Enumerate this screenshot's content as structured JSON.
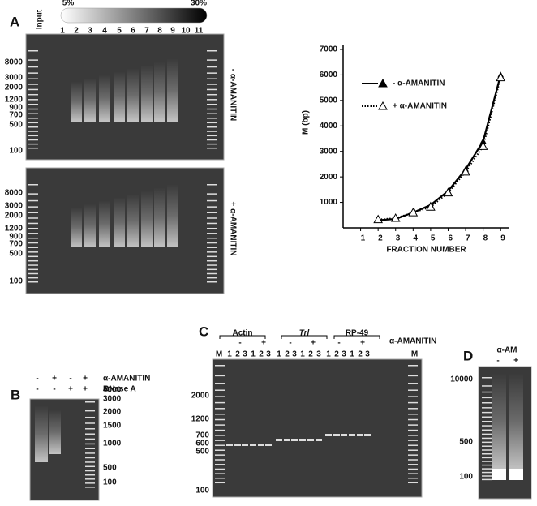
{
  "panel_a": {
    "label": "A",
    "gradient": [
      "5%",
      "30%"
    ],
    "lanes": [
      "input",
      "1",
      "2",
      "3",
      "4",
      "5",
      "6",
      "7",
      "8",
      "9",
      "10",
      "11"
    ],
    "ladder": [
      8000,
      3000,
      2000,
      1200,
      900,
      700,
      500,
      100
    ],
    "gels": [
      {
        "side_label": "- α-AMANITIN"
      },
      {
        "side_label": "+ α-AMANITIN"
      }
    ]
  },
  "chart_data": {
    "type": "line",
    "ylabel": "M (bp)",
    "xlabel": "FRACTION NUMBER",
    "x": [
      2,
      3,
      4,
      5,
      6,
      7,
      8,
      9
    ],
    "series": [
      {
        "name": "- α-AMANITIN",
        "color": "#000000",
        "style": "solid",
        "values": [
          300,
          350,
          600,
          900,
          1450,
          2300,
          3400,
          6000
        ]
      },
      {
        "name": "+ α-AMANITIN",
        "color": "#000000",
        "style": "dotted",
        "values": [
          330,
          380,
          600,
          820,
          1380,
          2200,
          3200,
          5900
        ]
      }
    ],
    "xlim": [
      0,
      9.5
    ],
    "xticks": [
      1,
      2,
      3,
      4,
      5,
      6,
      7,
      8,
      9
    ],
    "ylim": [
      0,
      7000
    ],
    "yticks": [
      1000,
      2000,
      3000,
      4000,
      5000,
      6000,
      7000
    ]
  },
  "panel_b": {
    "label": "B",
    "rows": [
      {
        "name": "α-AMANITIN",
        "signs": [
          "-",
          "+",
          "-",
          "+"
        ]
      },
      {
        "name": "RNase A",
        "signs": [
          "-",
          "-",
          "+",
          "+"
        ]
      }
    ],
    "ladder": [
      4000,
      3000,
      2000,
      1500,
      1000,
      500,
      100
    ]
  },
  "panel_c": {
    "label": "C",
    "treatment": "α-AMANITIN",
    "groups": [
      {
        "name": "Actin",
        "signs": [
          "-",
          "+"
        ]
      },
      {
        "name": "Trl",
        "signs": [
          "-",
          "+"
        ]
      },
      {
        "name": "RP-49",
        "signs": [
          "-",
          "+"
        ]
      }
    ],
    "lanes": [
      "M",
      "1",
      "2",
      "3",
      "1",
      "2",
      "3",
      "1",
      "2",
      "3",
      "1",
      "2",
      "3",
      "1",
      "2",
      "3",
      "1",
      "2",
      "3",
      "M"
    ],
    "ladder": [
      2000,
      1200,
      700,
      600,
      500,
      100
    ]
  },
  "panel_d": {
    "label": "D",
    "treatment": "α-AM",
    "signs": [
      "-",
      "+"
    ],
    "ladder": [
      10000,
      500,
      100
    ]
  }
}
